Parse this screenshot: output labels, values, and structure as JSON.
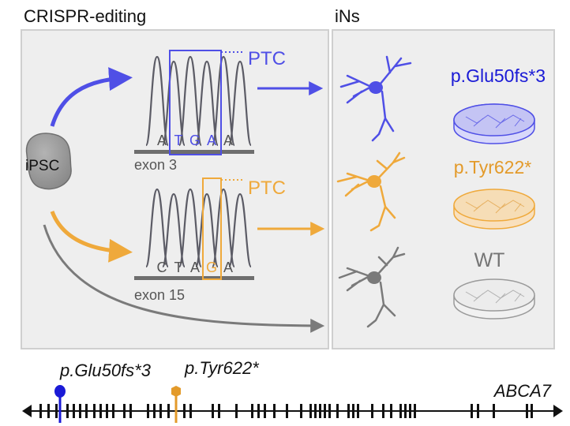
{
  "headings": {
    "left": "CRISPR-editing",
    "right": "iNs"
  },
  "source_cell": {
    "label": "iPSC"
  },
  "edits": [
    {
      "bases": [
        "A",
        "T",
        "G",
        "A",
        "A"
      ],
      "box_from": 1,
      "box_to": 3,
      "exon_label": "exon 3",
      "ptc_label": "PTC",
      "color": "#4f4fe6",
      "mutation_label": "p.Glu50fs*3",
      "label_color": "#1a1ad6"
    },
    {
      "bases": [
        "C",
        "T",
        "A",
        "G",
        "A"
      ],
      "box_from": 3,
      "box_to": 3,
      "exon_label": "exon 15",
      "ptc_label": "PTC",
      "color": "#efa93b",
      "mutation_label": "p.Tyr622*",
      "label_color": "#e39a2a"
    }
  ],
  "control": {
    "label": "WT",
    "color": "#7a7a7a",
    "label_color": "#757575"
  },
  "gene": {
    "name": "ABCA7",
    "variants": [
      {
        "label": "p.Glu50fs*3",
        "color": "#1a1ad6"
      },
      {
        "label": "p.Tyr622*",
        "color": "#e39a2a"
      }
    ]
  },
  "colors": {
    "panel_bg": "#eeeeee",
    "panel_border": "#cfcfcf",
    "peak": "#5c5c66",
    "bar": "#6e6e6e"
  }
}
